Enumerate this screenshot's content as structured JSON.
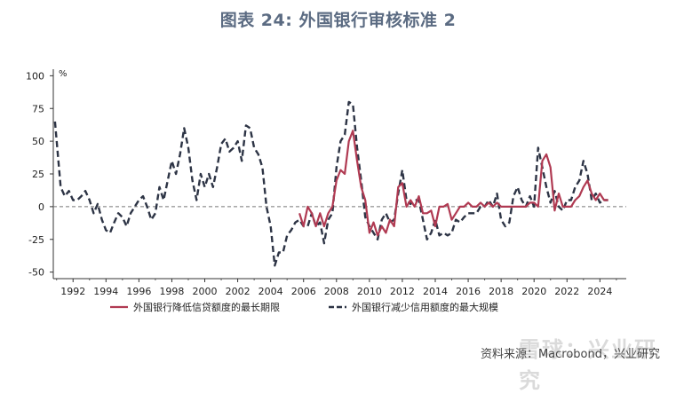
{
  "title": "图表 24: 外国银行审核标准 2",
  "source": "资料来源：Macrobond，兴业研究",
  "watermark": "雪球：兴业研究",
  "chart_data": {
    "type": "line",
    "unit": "%",
    "ylim": [
      -55,
      105
    ],
    "yticks": [
      100,
      75,
      50,
      25,
      0,
      -25,
      -50
    ],
    "xlim": [
      1990.8,
      2025.6
    ],
    "xticks": [
      1992,
      1994,
      1996,
      1998,
      2000,
      2002,
      2004,
      2006,
      2008,
      2010,
      2012,
      2014,
      2016,
      2018,
      2020,
      2022,
      2024
    ],
    "legend_position": "bottom",
    "zero_line": true,
    "grid": false,
    "series": [
      {
        "name": "外国银行降低信贷额度的最长期限",
        "color": "#b03a52",
        "style": "solid",
        "points": [
          [
            2005.75,
            -5
          ],
          [
            2006.0,
            -15
          ],
          [
            2006.25,
            0
          ],
          [
            2006.5,
            -5
          ],
          [
            2006.75,
            -15
          ],
          [
            2007.0,
            -5
          ],
          [
            2007.25,
            -15
          ],
          [
            2007.5,
            -5
          ],
          [
            2007.75,
            0
          ],
          [
            2008.0,
            20
          ],
          [
            2008.25,
            28
          ],
          [
            2008.5,
            25
          ],
          [
            2008.75,
            50
          ],
          [
            2009.0,
            58
          ],
          [
            2009.25,
            35
          ],
          [
            2009.5,
            15
          ],
          [
            2009.75,
            5
          ],
          [
            2010.0,
            -20
          ],
          [
            2010.25,
            -12
          ],
          [
            2010.5,
            -22
          ],
          [
            2010.75,
            -15
          ],
          [
            2011.0,
            -20
          ],
          [
            2011.25,
            -10
          ],
          [
            2011.5,
            -15
          ],
          [
            2011.75,
            15
          ],
          [
            2012.0,
            18
          ],
          [
            2012.25,
            0
          ],
          [
            2012.5,
            5
          ],
          [
            2012.75,
            0
          ],
          [
            2013.0,
            8
          ],
          [
            2013.25,
            -5
          ],
          [
            2013.5,
            -5
          ],
          [
            2013.75,
            -3
          ],
          [
            2014.0,
            -15
          ],
          [
            2014.25,
            0
          ],
          [
            2014.5,
            0
          ],
          [
            2014.75,
            2
          ],
          [
            2015.0,
            -10
          ],
          [
            2015.25,
            -5
          ],
          [
            2015.5,
            0
          ],
          [
            2015.75,
            0
          ],
          [
            2016.0,
            3
          ],
          [
            2016.25,
            0
          ],
          [
            2016.5,
            0
          ],
          [
            2016.75,
            3
          ],
          [
            2017.0,
            0
          ],
          [
            2017.25,
            3
          ],
          [
            2017.5,
            0
          ],
          [
            2017.75,
            3
          ],
          [
            2018.0,
            0
          ],
          [
            2018.5,
            0
          ],
          [
            2019.0,
            0
          ],
          [
            2019.5,
            0
          ],
          [
            2019.75,
            3
          ],
          [
            2020.0,
            3
          ],
          [
            2020.25,
            0
          ],
          [
            2020.5,
            35
          ],
          [
            2020.75,
            40
          ],
          [
            2021.0,
            30
          ],
          [
            2021.25,
            -3
          ],
          [
            2021.5,
            10
          ],
          [
            2021.75,
            0
          ],
          [
            2022.0,
            0
          ],
          [
            2022.25,
            0
          ],
          [
            2022.5,
            5
          ],
          [
            2022.75,
            8
          ],
          [
            2023.0,
            15
          ],
          [
            2023.25,
            20
          ],
          [
            2023.5,
            10
          ],
          [
            2023.75,
            5
          ],
          [
            2024.0,
            10
          ],
          [
            2024.25,
            5
          ],
          [
            2024.5,
            5
          ]
        ]
      },
      {
        "name": "外国银行减少信用额度的最大规模",
        "color": "#2d3445",
        "style": "dashed",
        "points": [
          [
            1990.9,
            65
          ],
          [
            1991.25,
            15
          ],
          [
            1991.5,
            8
          ],
          [
            1991.75,
            12
          ],
          [
            1992.0,
            5
          ],
          [
            1992.25,
            5
          ],
          [
            1992.5,
            8
          ],
          [
            1992.75,
            12
          ],
          [
            1993.0,
            5
          ],
          [
            1993.25,
            -5
          ],
          [
            1993.5,
            2
          ],
          [
            1993.75,
            -10
          ],
          [
            1994.0,
            -18
          ],
          [
            1994.25,
            -20
          ],
          [
            1994.5,
            -12
          ],
          [
            1994.75,
            -5
          ],
          [
            1995.0,
            -8
          ],
          [
            1995.25,
            -15
          ],
          [
            1995.5,
            -5
          ],
          [
            1995.75,
            0
          ],
          [
            1996.0,
            5
          ],
          [
            1996.25,
            8
          ],
          [
            1996.5,
            0
          ],
          [
            1996.75,
            -10
          ],
          [
            1997.0,
            -5
          ],
          [
            1997.25,
            15
          ],
          [
            1997.5,
            5
          ],
          [
            1997.75,
            20
          ],
          [
            1998.0,
            35
          ],
          [
            1998.25,
            25
          ],
          [
            1998.5,
            40
          ],
          [
            1998.75,
            60
          ],
          [
            1999.0,
            45
          ],
          [
            1999.25,
            20
          ],
          [
            1999.5,
            5
          ],
          [
            1999.75,
            25
          ],
          [
            2000.0,
            15
          ],
          [
            2000.25,
            25
          ],
          [
            2000.5,
            15
          ],
          [
            2000.75,
            30
          ],
          [
            2001.0,
            48
          ],
          [
            2001.25,
            52
          ],
          [
            2001.5,
            42
          ],
          [
            2001.75,
            45
          ],
          [
            2002.0,
            50
          ],
          [
            2002.25,
            35
          ],
          [
            2002.5,
            62
          ],
          [
            2002.75,
            60
          ],
          [
            2003.0,
            45
          ],
          [
            2003.25,
            40
          ],
          [
            2003.5,
            30
          ],
          [
            2003.75,
            0
          ],
          [
            2004.0,
            -15
          ],
          [
            2004.25,
            -45
          ],
          [
            2004.5,
            -35
          ],
          [
            2004.75,
            -35
          ],
          [
            2005.0,
            -22
          ],
          [
            2005.25,
            -18
          ],
          [
            2005.5,
            -12
          ],
          [
            2005.75,
            -10
          ],
          [
            2006.0,
            -15
          ],
          [
            2006.25,
            -15
          ],
          [
            2006.5,
            -5
          ],
          [
            2006.75,
            -15
          ],
          [
            2007.0,
            -12
          ],
          [
            2007.25,
            -28
          ],
          [
            2007.5,
            -10
          ],
          [
            2007.75,
            -5
          ],
          [
            2008.0,
            30
          ],
          [
            2008.25,
            50
          ],
          [
            2008.5,
            55
          ],
          [
            2008.75,
            80
          ],
          [
            2009.0,
            78
          ],
          [
            2009.25,
            45
          ],
          [
            2009.5,
            20
          ],
          [
            2009.75,
            -8
          ],
          [
            2010.0,
            -15
          ],
          [
            2010.25,
            -20
          ],
          [
            2010.5,
            -25
          ],
          [
            2010.75,
            -10
          ],
          [
            2011.0,
            -5
          ],
          [
            2011.25,
            -12
          ],
          [
            2011.5,
            -10
          ],
          [
            2011.75,
            10
          ],
          [
            2012.0,
            28
          ],
          [
            2012.25,
            5
          ],
          [
            2012.5,
            2
          ],
          [
            2012.75,
            5
          ],
          [
            2013.0,
            5
          ],
          [
            2013.25,
            -10
          ],
          [
            2013.5,
            -25
          ],
          [
            2013.75,
            -20
          ],
          [
            2014.0,
            -10
          ],
          [
            2014.25,
            -22
          ],
          [
            2014.5,
            -20
          ],
          [
            2014.75,
            -22
          ],
          [
            2015.0,
            -20
          ],
          [
            2015.25,
            -10
          ],
          [
            2015.5,
            -12
          ],
          [
            2015.75,
            -8
          ],
          [
            2016.0,
            -5
          ],
          [
            2016.25,
            -5
          ],
          [
            2016.5,
            -5
          ],
          [
            2016.75,
            0
          ],
          [
            2017.0,
            0
          ],
          [
            2017.25,
            5
          ],
          [
            2017.5,
            0
          ],
          [
            2017.75,
            10
          ],
          [
            2018.0,
            -10
          ],
          [
            2018.25,
            -15
          ],
          [
            2018.5,
            -12
          ],
          [
            2018.75,
            8
          ],
          [
            2019.0,
            15
          ],
          [
            2019.25,
            5
          ],
          [
            2019.5,
            0
          ],
          [
            2019.75,
            8
          ],
          [
            2020.0,
            0
          ],
          [
            2020.25,
            45
          ],
          [
            2020.5,
            30
          ],
          [
            2020.75,
            15
          ],
          [
            2021.0,
            3
          ],
          [
            2021.25,
            12
          ],
          [
            2021.5,
            0
          ],
          [
            2021.75,
            -3
          ],
          [
            2022.0,
            5
          ],
          [
            2022.25,
            5
          ],
          [
            2022.5,
            15
          ],
          [
            2022.75,
            20
          ],
          [
            2023.0,
            35
          ],
          [
            2023.25,
            25
          ],
          [
            2023.5,
            5
          ],
          [
            2023.75,
            10
          ],
          [
            2024.0,
            3
          ],
          [
            2024.25,
            5
          ],
          [
            2024.5,
            5
          ]
        ]
      }
    ]
  }
}
